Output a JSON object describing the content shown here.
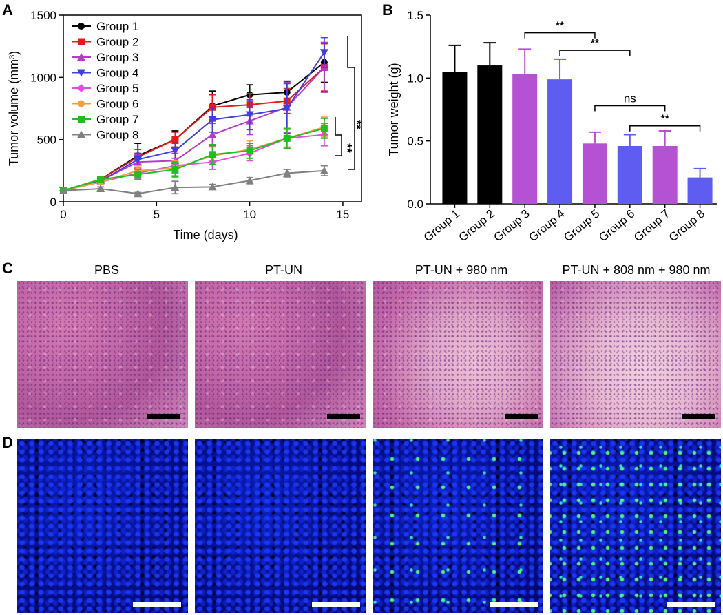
{
  "panels": {
    "a": "A",
    "b": "B",
    "c": "C",
    "d": "D"
  },
  "chart_data": [
    {
      "type": "line",
      "ylabel": "Tumor volume (mm³)",
      "xlabel": "Time (days)",
      "xlim": [
        0,
        16
      ],
      "ylim": [
        0,
        1500
      ],
      "xticks": [
        "0",
        "5",
        "10",
        "15"
      ],
      "yticks": [
        "0",
        "500",
        "1000",
        "1500"
      ],
      "x": [
        0,
        2,
        4,
        6,
        8,
        10,
        12,
        14
      ],
      "series": [
        {
          "name": "Group 1",
          "color": "#000000",
          "marker": "circle",
          "values": [
            90,
            180,
            370,
            500,
            770,
            860,
            880,
            1120
          ],
          "err": [
            0,
            20,
            100,
            70,
            120,
            80,
            90,
            160
          ]
        },
        {
          "name": "Group 2",
          "color": "#e41a1c",
          "marker": "square",
          "values": [
            90,
            180,
            360,
            500,
            760,
            780,
            810,
            1080
          ],
          "err": [
            0,
            20,
            60,
            60,
            100,
            90,
            100,
            190
          ]
        },
        {
          "name": "Group 3",
          "color": "#b33dc6",
          "marker": "triangle",
          "values": [
            90,
            170,
            320,
            330,
            540,
            650,
            760,
            1080
          ],
          "err": [
            0,
            20,
            60,
            60,
            90,
            110,
            200,
            200
          ]
        },
        {
          "name": "Group 4",
          "color": "#3f3fe0",
          "marker": "tri-down",
          "values": [
            90,
            165,
            340,
            410,
            660,
            700,
            750,
            1200
          ],
          "err": [
            0,
            20,
            50,
            60,
            100,
            120,
            200,
            120
          ]
        },
        {
          "name": "Group 5",
          "color": "#e44ce0",
          "marker": "diamond",
          "values": [
            90,
            160,
            230,
            290,
            320,
            390,
            510,
            540
          ],
          "err": [
            0,
            20,
            40,
            60,
            60,
            60,
            80,
            90
          ]
        },
        {
          "name": "Group 6",
          "color": "#f0a040",
          "marker": "circle",
          "values": [
            90,
            160,
            250,
            270,
            370,
            420,
            510,
            600
          ],
          "err": [
            0,
            20,
            40,
            60,
            70,
            70,
            70,
            80
          ]
        },
        {
          "name": "Group 7",
          "color": "#1fbf1f",
          "marker": "square",
          "values": [
            90,
            180,
            220,
            260,
            380,
            410,
            510,
            590
          ],
          "err": [
            0,
            20,
            40,
            60,
            80,
            60,
            80,
            80
          ]
        },
        {
          "name": "Group 8",
          "color": "#808080",
          "marker": "triangle",
          "values": [
            90,
            105,
            65,
            115,
            120,
            170,
            230,
            250
          ],
          "err": [
            0,
            15,
            10,
            50,
            20,
            25,
            30,
            40
          ]
        }
      ],
      "annotations": [
        "**",
        "**"
      ]
    },
    {
      "type": "bar",
      "ylabel": "Tumor weight (g)",
      "ylim": [
        0,
        1.5
      ],
      "yticks": [
        "0.0",
        "0.5",
        "1.0",
        "1.5"
      ],
      "categories": [
        "Group 1",
        "Group 2",
        "Group 3",
        "Group 4",
        "Group 5",
        "Group 6",
        "Group 7",
        "Group 8"
      ],
      "values": [
        1.05,
        1.1,
        1.03,
        0.99,
        0.48,
        0.46,
        0.46,
        0.21
      ],
      "err": [
        0.21,
        0.18,
        0.2,
        0.16,
        0.09,
        0.09,
        0.12,
        0.07
      ],
      "colors": [
        "#000000",
        "#000000",
        "#b552d3",
        "#5f5cf2",
        "#b552d3",
        "#5f5cf2",
        "#b552d3",
        "#5f5cf2"
      ],
      "significance": [
        {
          "a": 2,
          "b": 4,
          "label": "**",
          "y": 1.36
        },
        {
          "a": 3,
          "b": 5,
          "label": "**",
          "y": 1.22
        },
        {
          "a": 4,
          "b": 6,
          "label": "ns",
          "y": 0.78
        },
        {
          "a": 5,
          "b": 7,
          "label": "**",
          "y": 0.62
        }
      ]
    }
  ],
  "images": {
    "titles": [
      "PBS",
      "PT-UN",
      "PT-UN +  980 nm",
      "PT-UN + 808 nm + 980 nm"
    ]
  },
  "colors": {
    "scale_bar_he": "#000000",
    "scale_bar_fluor": "#ffffff"
  }
}
